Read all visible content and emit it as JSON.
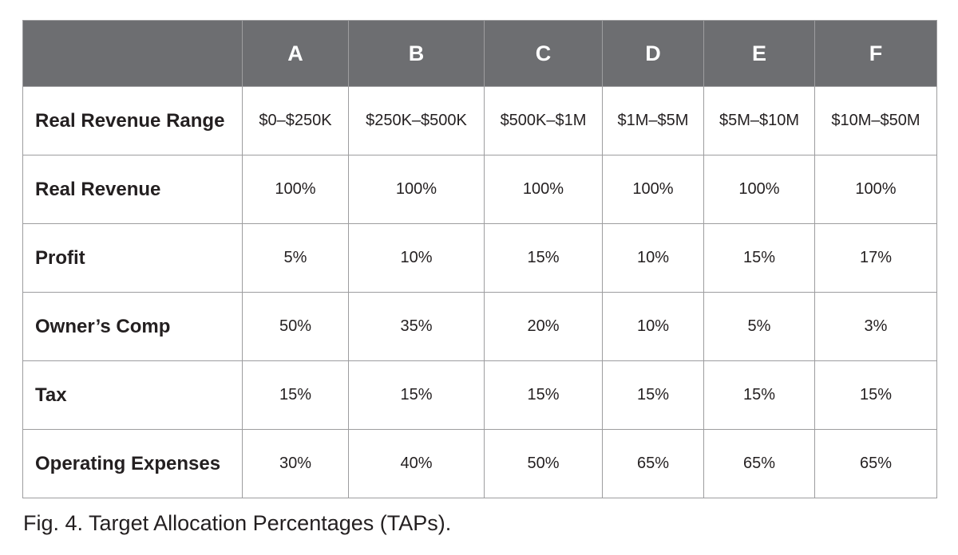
{
  "table": {
    "columns": [
      "A",
      "B",
      "C",
      "D",
      "E",
      "F"
    ],
    "rows": [
      {
        "label": "Real Revenue Range",
        "values": [
          "$0–$250K",
          "$250K–$500K",
          "$500K–$1M",
          "$1M–$5M",
          "$5M–$10M",
          "$10M–$50M"
        ]
      },
      {
        "label": "Real Revenue",
        "values": [
          "100%",
          "100%",
          "100%",
          "100%",
          "100%",
          "100%"
        ]
      },
      {
        "label": "Profit",
        "values": [
          "5%",
          "10%",
          "15%",
          "10%",
          "15%",
          "17%"
        ]
      },
      {
        "label": "Owner’s Comp",
        "values": [
          "50%",
          "35%",
          "20%",
          "10%",
          "5%",
          "3%"
        ]
      },
      {
        "label": "Tax",
        "values": [
          "15%",
          "15%",
          "15%",
          "15%",
          "15%",
          "15%"
        ]
      },
      {
        "label": "Operating Expenses",
        "values": [
          "30%",
          "40%",
          "50%",
          "65%",
          "65%",
          "65%"
        ]
      }
    ]
  },
  "caption": "Fig. 4. Target Allocation Percentages (TAPs).",
  "colors": {
    "header_background": "#6d6e71",
    "header_text": "#ffffff",
    "grid_lines": "#9d9d9f",
    "body_text": "#231f20"
  }
}
